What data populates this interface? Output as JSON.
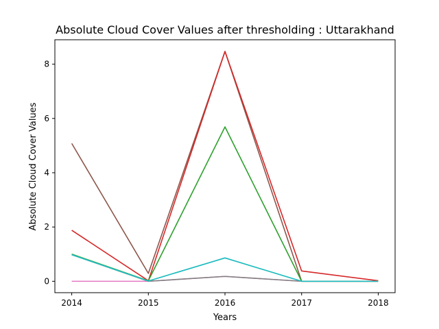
{
  "chart_data": {
    "type": "line",
    "title": "Absolute Cloud Cover Values after thresholding : Uttarakhand",
    "xlabel": "Years",
    "ylabel": "Absolute Cloud Cover Values",
    "x": [
      2014,
      2015,
      2016,
      2017,
      2018
    ],
    "x_ticks": [
      "2014",
      "2015",
      "2016",
      "2017",
      "2018"
    ],
    "y_ticks": [
      "0",
      "2",
      "4",
      "6",
      "8"
    ],
    "ylim": [
      -0.42,
      8.9
    ],
    "grid": false,
    "series": [
      {
        "color": "#8c564b",
        "values": [
          5.08,
          0.29,
          8.47,
          0.0,
          0.0
        ]
      },
      {
        "color": "#d62728",
        "values": [
          1.88,
          0.02,
          8.47,
          0.38,
          0.02
        ]
      },
      {
        "color": "#2ca02c",
        "values": [
          1.0,
          0.02,
          5.69,
          0.0,
          0.0
        ]
      },
      {
        "color": "#e377c2",
        "values": [
          0.0,
          0.0,
          0.18,
          0.0,
          0.0
        ]
      },
      {
        "color": "#7f7f7f",
        "values": [
          0.98,
          0.0,
          0.18,
          0.0,
          0.0
        ]
      },
      {
        "color": "#bcbd22",
        "values": [
          0.98,
          0.01,
          0.86,
          0.0,
          0.0
        ]
      },
      {
        "color": "#17becf",
        "values": [
          0.98,
          0.01,
          0.86,
          0.0,
          0.0
        ]
      }
    ]
  }
}
